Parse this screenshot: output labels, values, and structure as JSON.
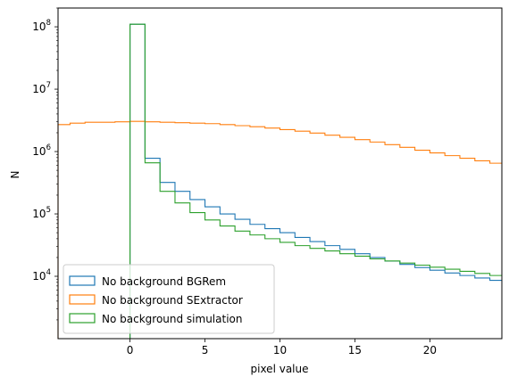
{
  "chart_data": {
    "type": "histogram-step",
    "xlabel": "pixel value",
    "ylabel": "N",
    "xlim": [
      -4.8,
      24.8
    ],
    "ylim": [
      1000,
      200000000
    ],
    "yscale": "log",
    "x_ticks": [
      0,
      5,
      10,
      15,
      20
    ],
    "x_tick_labels": [
      "0",
      "5",
      "10",
      "15",
      "20"
    ],
    "y_ticks": [
      10000,
      100000,
      1000000,
      10000000,
      100000000
    ],
    "y_tick_labels": [
      "10^4",
      "10^5",
      "10^6",
      "10^7",
      "10^8"
    ],
    "legend_position": "lower-left",
    "series": [
      {
        "name": "No background BGRem",
        "color": "#1f77b4",
        "edges": [
          0,
          1,
          2,
          3,
          4,
          5,
          6,
          7,
          8,
          9,
          10,
          11,
          12,
          13,
          14,
          15,
          16,
          17,
          18,
          19,
          20,
          21,
          22,
          23,
          24,
          25
        ],
        "values": [
          110000000,
          780000,
          320000,
          230000,
          170000,
          130000,
          100000,
          82000,
          68000,
          58000,
          50000,
          42000,
          36000,
          31000,
          27000,
          23000,
          20000,
          17500,
          15500,
          13800,
          12500,
          11300,
          10300,
          9400,
          8600
        ]
      },
      {
        "name": "No background SExtractor",
        "color": "#ff7f0e",
        "edges": [
          -5,
          -4,
          -3,
          -2,
          -1,
          0,
          1,
          2,
          3,
          4,
          5,
          6,
          7,
          8,
          9,
          10,
          11,
          12,
          13,
          14,
          15,
          16,
          17,
          18,
          19,
          20,
          21,
          22,
          23,
          24,
          25
        ],
        "values": [
          2700000,
          2850000,
          2950000,
          2950000,
          3000000,
          3050000,
          3000000,
          2950000,
          2900000,
          2850000,
          2800000,
          2700000,
          2600000,
          2500000,
          2380000,
          2250000,
          2120000,
          1980000,
          1830000,
          1690000,
          1550000,
          1420000,
          1290000,
          1170000,
          1050000,
          950000,
          860000,
          780000,
          710000,
          650000
        ]
      },
      {
        "name": "No background simulation",
        "color": "#2ca02c",
        "edges": [
          0,
          1,
          2,
          3,
          4,
          5,
          6,
          7,
          8,
          9,
          10,
          11,
          12,
          13,
          14,
          15,
          16,
          17,
          18,
          19,
          20,
          21,
          22,
          23,
          24,
          25
        ],
        "values": [
          110000000,
          660000,
          230000,
          150000,
          105000,
          80000,
          64000,
          53000,
          46000,
          40000,
          35000,
          31000,
          28000,
          25500,
          23000,
          21000,
          19000,
          17600,
          16300,
          15100,
          14000,
          13000,
          12000,
          11100,
          10300
        ]
      }
    ]
  }
}
